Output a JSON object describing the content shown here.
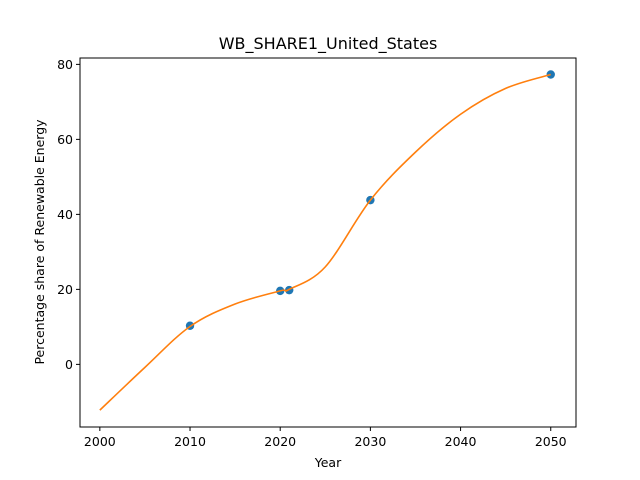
{
  "chart_data": {
    "type": "scatter",
    "title": "WB_SHARE1_United_States",
    "xlabel": "Year",
    "ylabel": "Percentage share of Renewable Energy",
    "xlim": [
      1997.8,
      2052.8
    ],
    "ylim": [
      -16.7,
      81.7
    ],
    "xticks": [
      2000,
      2010,
      2020,
      2030,
      2040,
      2050
    ],
    "yticks": [
      0,
      20,
      40,
      60,
      80
    ],
    "grid": false,
    "series": [
      {
        "kind": "points",
        "color": "#1f77b4",
        "points": [
          {
            "x": 2010,
            "y": 10.3
          },
          {
            "x": 2020,
            "y": 19.6
          },
          {
            "x": 2021,
            "y": 19.8
          },
          {
            "x": 2030,
            "y": 43.8
          },
          {
            "x": 2050,
            "y": 77.3
          }
        ]
      },
      {
        "kind": "fit-curve",
        "color": "#ff7f0e",
        "points": [
          {
            "x": 2000,
            "y": -12.2
          },
          {
            "x": 2005,
            "y": -0.8
          },
          {
            "x": 2010,
            "y": 10.1
          },
          {
            "x": 2015,
            "y": 16.1
          },
          {
            "x": 2020,
            "y": 19.6
          },
          {
            "x": 2021,
            "y": 20.0
          },
          {
            "x": 2025,
            "y": 26.0
          },
          {
            "x": 2030,
            "y": 43.8
          },
          {
            "x": 2035,
            "y": 56.6
          },
          {
            "x": 2040,
            "y": 66.7
          },
          {
            "x": 2045,
            "y": 73.6
          },
          {
            "x": 2050,
            "y": 77.3
          }
        ]
      }
    ]
  }
}
